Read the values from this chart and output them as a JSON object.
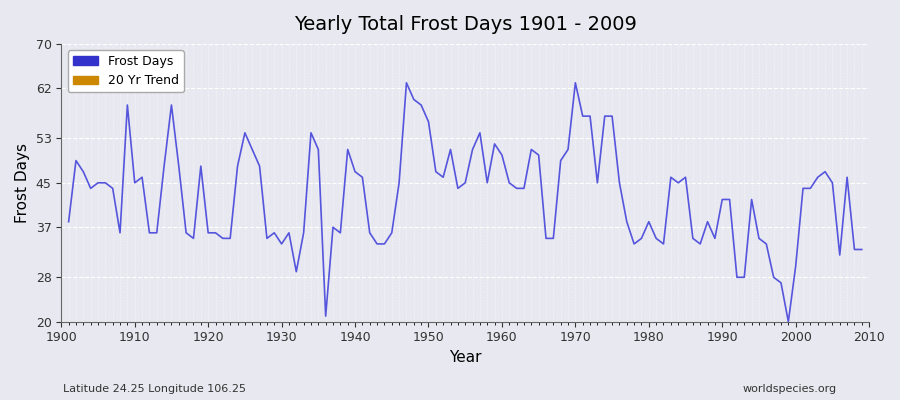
{
  "title": "Yearly Total Frost Days 1901 - 2009",
  "xlabel": "Year",
  "ylabel": "Frost Days",
  "subtitle": "Latitude 24.25 Longitude 106.25",
  "watermark": "worldspecies.org",
  "legend_entries": [
    "Frost Days",
    "20 Yr Trend"
  ],
  "legend_colors": [
    "#3333cc",
    "#cc8800"
  ],
  "line_color": "#5555dd",
  "ylim": [
    20,
    70
  ],
  "yticks": [
    20,
    28,
    37,
    45,
    53,
    62,
    70
  ],
  "background_color": "#e8e8f0",
  "plot_bg": "#e0e0ec",
  "years": [
    1901,
    1902,
    1903,
    1904,
    1905,
    1906,
    1907,
    1908,
    1909,
    1910,
    1911,
    1912,
    1913,
    1914,
    1915,
    1916,
    1917,
    1918,
    1919,
    1920,
    1921,
    1922,
    1923,
    1924,
    1925,
    1926,
    1927,
    1928,
    1929,
    1930,
    1931,
    1932,
    1933,
    1934,
    1935,
    1936,
    1937,
    1938,
    1939,
    1940,
    1941,
    1942,
    1943,
    1944,
    1945,
    1946,
    1947,
    1948,
    1949,
    1950,
    1951,
    1952,
    1953,
    1954,
    1955,
    1956,
    1957,
    1958,
    1959,
    1960,
    1961,
    1962,
    1963,
    1964,
    1965,
    1966,
    1967,
    1968,
    1969,
    1970,
    1971,
    1972,
    1973,
    1974,
    1975,
    1976,
    1977,
    1978,
    1979,
    1980,
    1981,
    1982,
    1983,
    1984,
    1985,
    1986,
    1987,
    1988,
    1989,
    1990,
    1991,
    1992,
    1993,
    1994,
    1995,
    1996,
    1997,
    1998,
    1999,
    2000,
    2001,
    2002,
    2003,
    2004,
    2005,
    2006,
    2007,
    2008,
    2009
  ],
  "values": [
    38,
    49,
    47,
    44,
    45,
    45,
    44,
    36,
    59,
    45,
    46,
    36,
    36,
    48,
    59,
    48,
    36,
    35,
    48,
    36,
    36,
    35,
    35,
    48,
    54,
    51,
    48,
    35,
    36,
    34,
    36,
    29,
    36,
    54,
    51,
    21,
    37,
    36,
    51,
    47,
    46,
    36,
    34,
    34,
    36,
    45,
    63,
    60,
    59,
    56,
    47,
    46,
    51,
    44,
    45,
    51,
    54,
    45,
    52,
    50,
    45,
    44,
    44,
    51,
    50,
    35,
    35,
    49,
    51,
    63,
    57,
    57,
    45,
    57,
    57,
    45,
    38,
    34,
    35,
    38,
    35,
    34,
    46,
    45,
    46,
    35,
    34,
    38,
    35,
    42,
    42,
    28,
    28,
    42,
    35,
    34,
    28,
    27,
    20,
    30,
    44,
    44,
    46,
    47,
    45,
    32,
    46,
    33,
    33
  ]
}
